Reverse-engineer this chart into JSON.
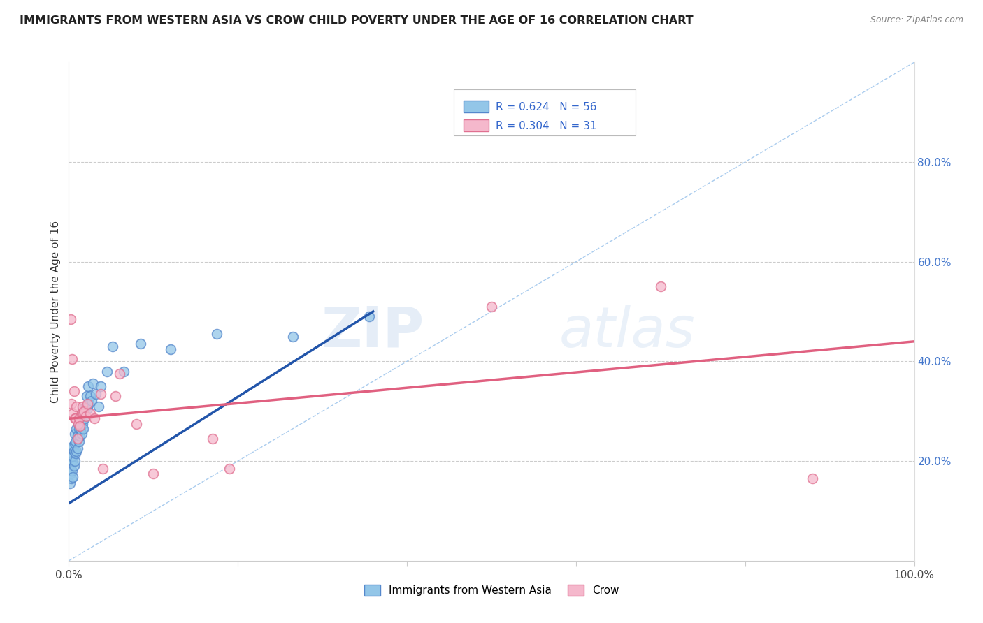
{
  "title": "IMMIGRANTS FROM WESTERN ASIA VS CROW CHILD POVERTY UNDER THE AGE OF 16 CORRELATION CHART",
  "source": "Source: ZipAtlas.com",
  "ylabel": "Child Poverty Under the Age of 16",
  "xlim": [
    0,
    1.0
  ],
  "ylim": [
    0,
    1.0
  ],
  "legend_label1": "Immigrants from Western Asia",
  "legend_label2": "Crow",
  "R1": "0.624",
  "N1": "56",
  "R2": "0.304",
  "N2": "31",
  "color_blue": "#93c6e8",
  "color_pink": "#f5b8cc",
  "color_blue_edge": "#5588cc",
  "color_pink_edge": "#e07090",
  "color_blue_line": "#2255aa",
  "color_pink_line": "#e06080",
  "color_diag": "#aaccee",
  "watermark_color": "#cce4f5",
  "blue_line_x0": 0.0,
  "blue_line_y0": 0.115,
  "blue_line_x1": 0.36,
  "blue_line_y1": 0.5,
  "pink_line_x0": 0.0,
  "pink_line_y0": 0.285,
  "pink_line_x1": 1.0,
  "pink_line_y1": 0.44,
  "blue_x": [
    0.001,
    0.001,
    0.002,
    0.002,
    0.003,
    0.003,
    0.004,
    0.004,
    0.004,
    0.005,
    0.005,
    0.005,
    0.006,
    0.006,
    0.007,
    0.007,
    0.007,
    0.008,
    0.008,
    0.009,
    0.009,
    0.01,
    0.01,
    0.011,
    0.011,
    0.012,
    0.012,
    0.013,
    0.013,
    0.014,
    0.015,
    0.015,
    0.016,
    0.016,
    0.017,
    0.018,
    0.019,
    0.02,
    0.021,
    0.022,
    0.023,
    0.024,
    0.025,
    0.027,
    0.029,
    0.032,
    0.035,
    0.038,
    0.045,
    0.052,
    0.065,
    0.085,
    0.12,
    0.175,
    0.265,
    0.355
  ],
  "blue_y": [
    0.155,
    0.185,
    0.175,
    0.195,
    0.165,
    0.21,
    0.18,
    0.2,
    0.225,
    0.168,
    0.21,
    0.23,
    0.19,
    0.22,
    0.2,
    0.235,
    0.255,
    0.215,
    0.24,
    0.22,
    0.265,
    0.225,
    0.25,
    0.245,
    0.275,
    0.24,
    0.265,
    0.25,
    0.285,
    0.265,
    0.255,
    0.28,
    0.305,
    0.275,
    0.265,
    0.295,
    0.285,
    0.31,
    0.33,
    0.305,
    0.35,
    0.315,
    0.33,
    0.32,
    0.355,
    0.335,
    0.31,
    0.35,
    0.38,
    0.43,
    0.38,
    0.435,
    0.425,
    0.455,
    0.45,
    0.49
  ],
  "pink_x": [
    0.002,
    0.003,
    0.004,
    0.005,
    0.006,
    0.007,
    0.008,
    0.009,
    0.01,
    0.011,
    0.012,
    0.013,
    0.015,
    0.016,
    0.017,
    0.018,
    0.02,
    0.022,
    0.025,
    0.03,
    0.038,
    0.04,
    0.055,
    0.06,
    0.08,
    0.1,
    0.17,
    0.19,
    0.5,
    0.7,
    0.88
  ],
  "pink_y": [
    0.485,
    0.315,
    0.405,
    0.295,
    0.34,
    0.285,
    0.285,
    0.31,
    0.245,
    0.275,
    0.285,
    0.27,
    0.295,
    0.31,
    0.295,
    0.3,
    0.29,
    0.315,
    0.295,
    0.285,
    0.335,
    0.185,
    0.33,
    0.375,
    0.275,
    0.175,
    0.245,
    0.185,
    0.51,
    0.55,
    0.165
  ]
}
